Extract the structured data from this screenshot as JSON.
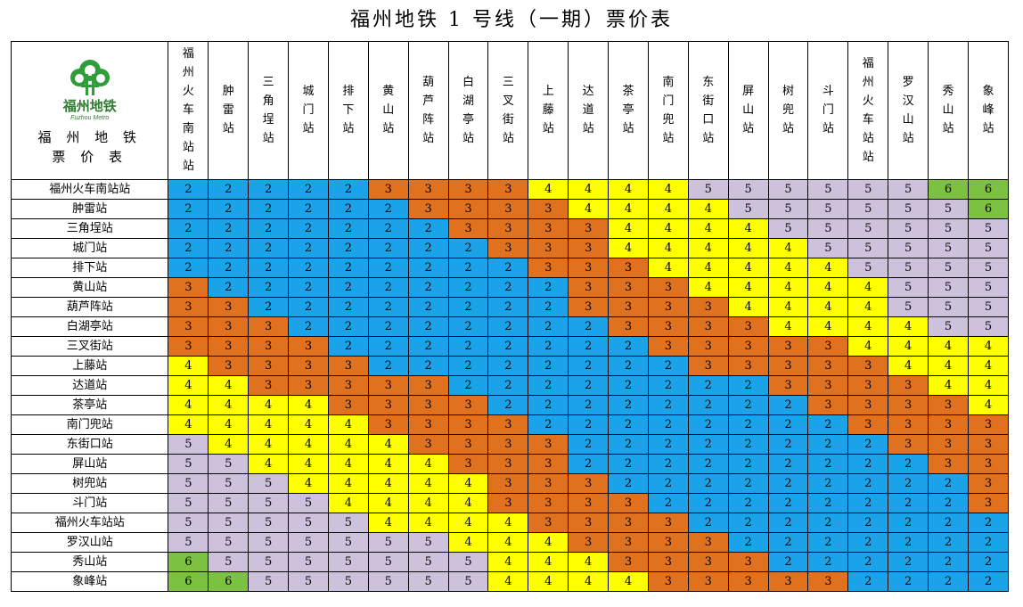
{
  "title": "福州地铁 1 号线（一期）票价表",
  "logo": {
    "cn": "福州地铁",
    "en": "Fuzhou Metro"
  },
  "corner": {
    "line1": "福 州 地 铁",
    "line2": "票 价 表"
  },
  "stations": [
    "福州火车南站站",
    "肿雷站",
    "三角埕站",
    "城门站",
    "排下站",
    "黄山站",
    "葫芦阵站",
    "白湖亭站",
    "三叉街站",
    "上藤站",
    "达道站",
    "茶亭站",
    "南门兜站",
    "东街口站",
    "屏山站",
    "树兜站",
    "斗门站",
    "福州火车站站",
    "罗汉山站",
    "秀山站",
    "象峰站"
  ],
  "headers": [
    "福州火车南站站",
    "肿雷站",
    "三角埕站",
    "城门站",
    "排下站",
    "黄山站",
    "葫芦阵站",
    "白湖亭站",
    "三叉街站",
    "上藤站",
    "达道站",
    "茶亭站",
    "南门兜站",
    "东街口站",
    "屏山站",
    "树兜站",
    "斗门站",
    "福州火车站站",
    "罗汉山站",
    "秀山站",
    "象峰站"
  ],
  "colors": {
    "2": "#1aa3e8",
    "3": "#e0711e",
    "4": "#ffff00",
    "5": "#cdc1dc",
    "6": "#7cc142"
  },
  "fares": [
    [
      2,
      2,
      2,
      2,
      2,
      3,
      3,
      3,
      3,
      4,
      4,
      4,
      4,
      5,
      5,
      5,
      5,
      5,
      5,
      6,
      6
    ],
    [
      2,
      2,
      2,
      2,
      2,
      2,
      3,
      3,
      3,
      3,
      4,
      4,
      4,
      4,
      5,
      5,
      5,
      5,
      5,
      5,
      6
    ],
    [
      2,
      2,
      2,
      2,
      2,
      2,
      2,
      3,
      3,
      3,
      3,
      4,
      4,
      4,
      4,
      5,
      5,
      5,
      5,
      5,
      5
    ],
    [
      2,
      2,
      2,
      2,
      2,
      2,
      2,
      2,
      3,
      3,
      3,
      4,
      4,
      4,
      4,
      4,
      5,
      5,
      5,
      5,
      5
    ],
    [
      2,
      2,
      2,
      2,
      2,
      2,
      2,
      2,
      2,
      3,
      3,
      3,
      4,
      4,
      4,
      4,
      4,
      5,
      5,
      5,
      5
    ],
    [
      3,
      2,
      2,
      2,
      2,
      2,
      2,
      2,
      2,
      2,
      3,
      3,
      3,
      4,
      4,
      4,
      4,
      4,
      5,
      5,
      5
    ],
    [
      3,
      3,
      2,
      2,
      2,
      2,
      2,
      2,
      2,
      2,
      3,
      3,
      3,
      3,
      4,
      4,
      4,
      4,
      5,
      5,
      5
    ],
    [
      3,
      3,
      3,
      2,
      2,
      2,
      2,
      2,
      2,
      2,
      2,
      3,
      3,
      3,
      3,
      4,
      4,
      4,
      4,
      5,
      5
    ],
    [
      3,
      3,
      3,
      3,
      2,
      2,
      2,
      2,
      2,
      2,
      2,
      2,
      3,
      3,
      3,
      3,
      3,
      4,
      4,
      4,
      4
    ],
    [
      4,
      3,
      3,
      3,
      3,
      2,
      2,
      2,
      2,
      2,
      2,
      2,
      2,
      3,
      3,
      3,
      3,
      3,
      4,
      4,
      4
    ],
    [
      4,
      4,
      3,
      3,
      3,
      3,
      3,
      2,
      2,
      2,
      2,
      2,
      2,
      2,
      2,
      3,
      3,
      3,
      3,
      4,
      4
    ],
    [
      4,
      4,
      4,
      4,
      3,
      3,
      3,
      3,
      2,
      2,
      2,
      2,
      2,
      2,
      2,
      2,
      3,
      3,
      3,
      3,
      4
    ],
    [
      4,
      4,
      4,
      4,
      4,
      3,
      3,
      3,
      3,
      2,
      2,
      2,
      2,
      2,
      2,
      2,
      2,
      3,
      3,
      3,
      3
    ],
    [
      5,
      4,
      4,
      4,
      4,
      4,
      3,
      3,
      3,
      3,
      2,
      2,
      2,
      2,
      2,
      2,
      2,
      2,
      3,
      3,
      3
    ],
    [
      5,
      5,
      4,
      4,
      4,
      4,
      4,
      3,
      3,
      3,
      2,
      2,
      2,
      2,
      2,
      2,
      2,
      2,
      2,
      3,
      3
    ],
    [
      5,
      5,
      5,
      4,
      4,
      4,
      4,
      4,
      3,
      3,
      3,
      2,
      2,
      2,
      2,
      2,
      2,
      2,
      2,
      2,
      3
    ],
    [
      5,
      5,
      5,
      5,
      4,
      4,
      4,
      4,
      3,
      3,
      3,
      3,
      2,
      2,
      2,
      2,
      2,
      2,
      2,
      2,
      3
    ],
    [
      5,
      5,
      5,
      5,
      5,
      4,
      4,
      4,
      4,
      3,
      3,
      3,
      3,
      2,
      2,
      2,
      2,
      2,
      2,
      2,
      2
    ],
    [
      5,
      5,
      5,
      5,
      5,
      5,
      5,
      4,
      4,
      4,
      3,
      3,
      3,
      3,
      2,
      2,
      2,
      2,
      2,
      2,
      2
    ],
    [
      6,
      5,
      5,
      5,
      5,
      5,
      5,
      5,
      4,
      4,
      4,
      3,
      3,
      3,
      3,
      2,
      2,
      2,
      2,
      2,
      2
    ],
    [
      6,
      6,
      5,
      5,
      5,
      5,
      5,
      5,
      4,
      4,
      4,
      4,
      3,
      3,
      3,
      3,
      3,
      2,
      2,
      2,
      2
    ]
  ]
}
